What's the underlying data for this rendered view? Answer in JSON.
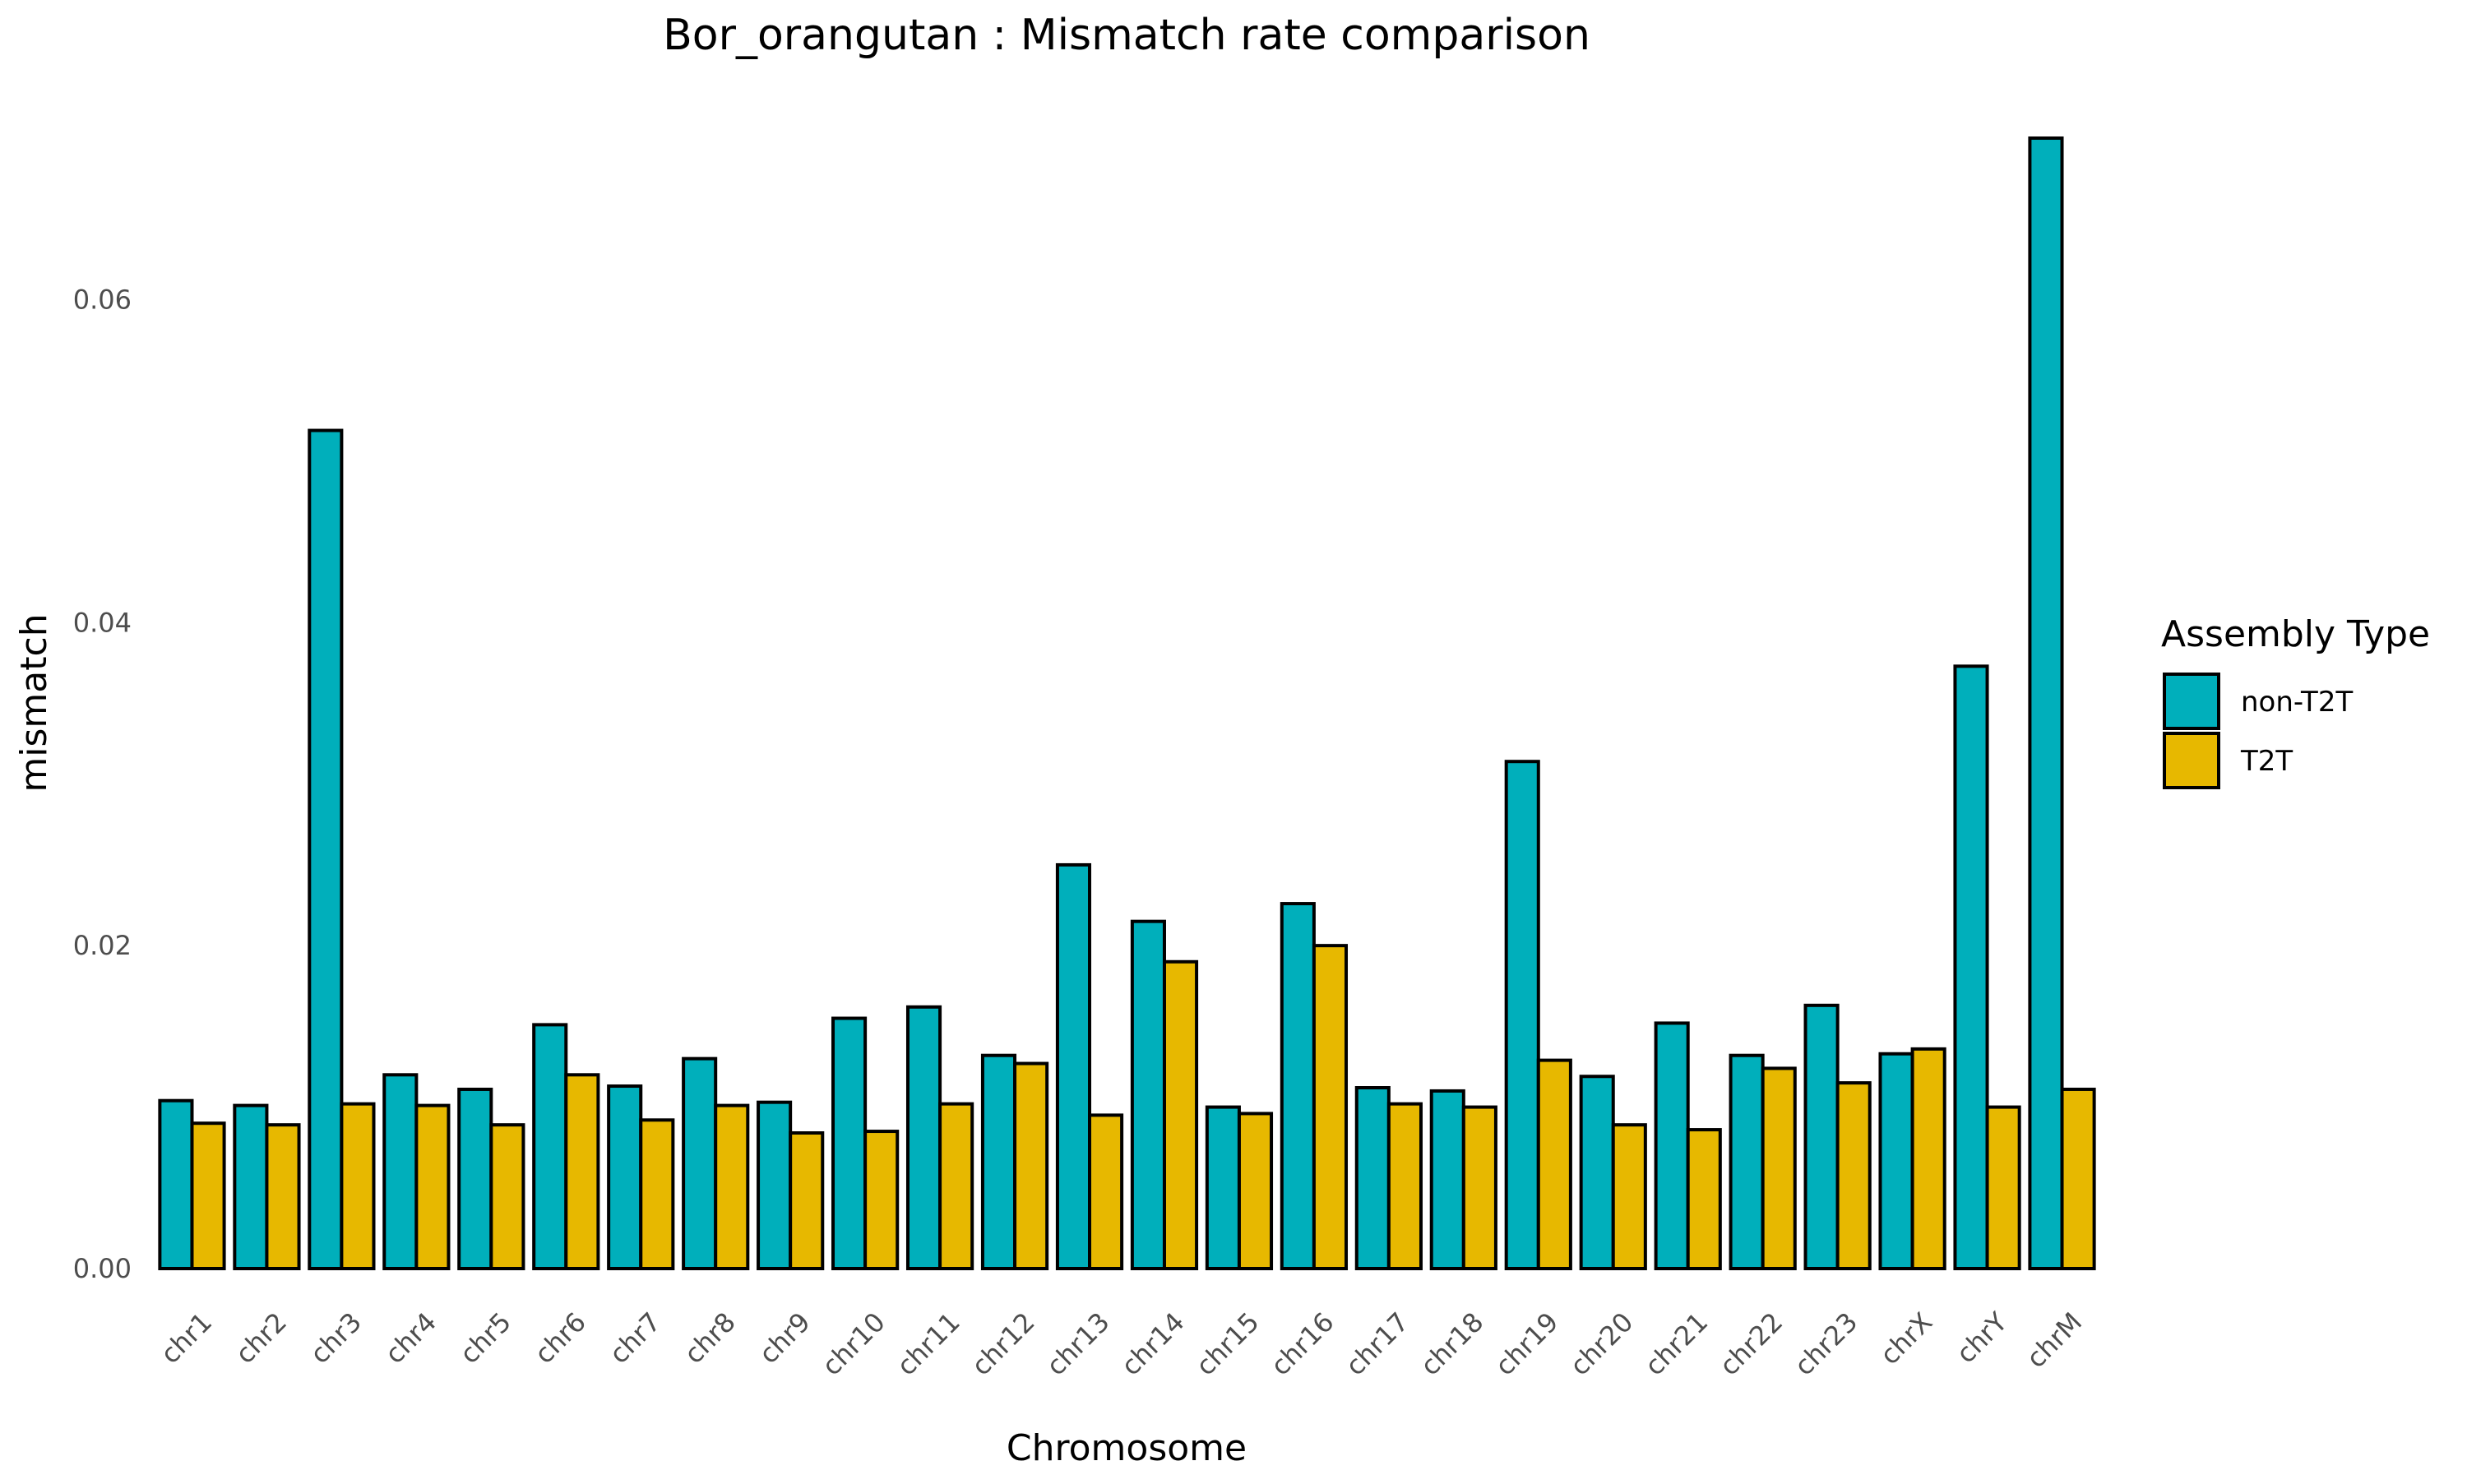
{
  "chart_data": {
    "type": "bar",
    "title": "Bor_orangutan : Mismatch rate comparison",
    "xlabel": "Chromosome",
    "ylabel": "mismatch",
    "ylim": [
      0,
      0.07
    ],
    "yticks": [
      0.0,
      0.02,
      0.04,
      0.06
    ],
    "ytick_labels": [
      "0.00",
      "0.02",
      "0.04",
      "0.06"
    ],
    "grid": false,
    "legend_position": "right",
    "legend_title": "Assembly Type",
    "categories": [
      "chr1",
      "chr2",
      "chr3",
      "chr4",
      "chr5",
      "chr6",
      "chr7",
      "chr8",
      "chr9",
      "chr10",
      "chr11",
      "chr12",
      "chr13",
      "chr14",
      "chr15",
      "chr16",
      "chr17",
      "chr18",
      "chr19",
      "chr20",
      "chr21",
      "chr22",
      "chr23",
      "chrX",
      "chrY",
      "chrM"
    ],
    "series": [
      {
        "name": "non-T2T",
        "color": "#00AFBB",
        "values": [
          0.0104,
          0.0101,
          0.0519,
          0.012,
          0.0111,
          0.0151,
          0.0113,
          0.013,
          0.0103,
          0.0155,
          0.0162,
          0.0132,
          0.025,
          0.0215,
          0.01,
          0.0226,
          0.0112,
          0.011,
          0.0314,
          0.0119,
          0.0152,
          0.0132,
          0.0163,
          0.0133,
          0.0373,
          0.07
        ]
      },
      {
        "name": "T2T",
        "color": "#E7B800",
        "values": [
          0.009,
          0.0089,
          0.0102,
          0.0101,
          0.0089,
          0.012,
          0.0092,
          0.0101,
          0.0084,
          0.0085,
          0.0102,
          0.0127,
          0.0095,
          0.019,
          0.0096,
          0.02,
          0.0102,
          0.01,
          0.0129,
          0.0089,
          0.0086,
          0.0124,
          0.0115,
          0.0136,
          0.01,
          0.0111
        ]
      }
    ]
  }
}
